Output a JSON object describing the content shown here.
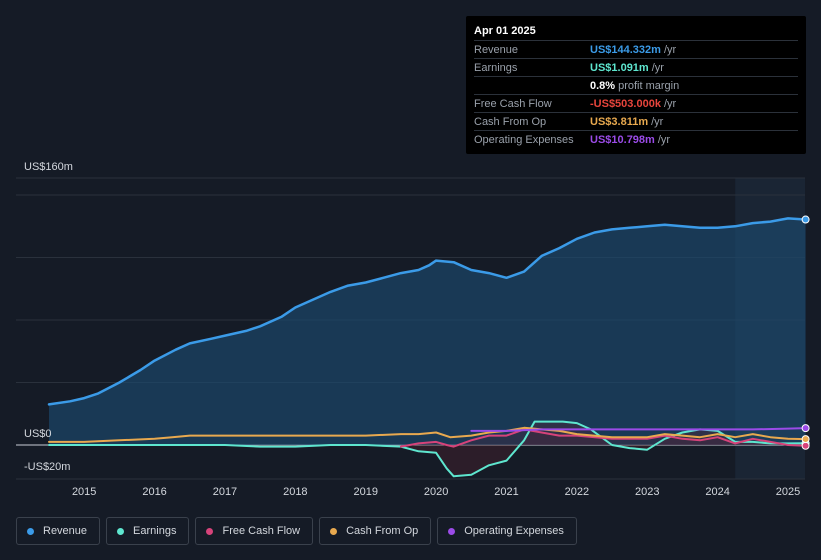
{
  "tooltip": {
    "date": "Apr 01 2025",
    "rows": [
      {
        "label": "Revenue",
        "value": "US$144.332m",
        "unit": "/yr",
        "color": "#3b9be8"
      },
      {
        "label": "Earnings",
        "value": "US$1.091m",
        "unit": "/yr",
        "color": "#5ee6cf"
      },
      {
        "label": "",
        "value": "0.8%",
        "unit": "profit margin",
        "color": "#ffffff"
      },
      {
        "label": "Free Cash Flow",
        "value": "-US$503.000k",
        "unit": "/yr",
        "color": "#e8453c"
      },
      {
        "label": "Cash From Op",
        "value": "US$3.811m",
        "unit": "/yr",
        "color": "#e8a94f"
      },
      {
        "label": "Operating Expenses",
        "value": "US$10.798m",
        "unit": "/yr",
        "color": "#9b4be8"
      }
    ]
  },
  "chart_data": {
    "type": "area",
    "title": "",
    "xlabel": "",
    "ylabel": "",
    "ylim": [
      -20,
      160
    ],
    "y_tick_labels": [
      "US$160m",
      "US$0",
      "-US$20m"
    ],
    "x_tick_labels": [
      "2015",
      "2016",
      "2017",
      "2018",
      "2019",
      "2020",
      "2021",
      "2022",
      "2023",
      "2024",
      "2025"
    ],
    "x_tick_years": [
      2015,
      2016,
      2017,
      2018,
      2019,
      2020,
      2021,
      2022,
      2023,
      2024,
      2025
    ],
    "x_range": [
      2014.5,
      2025.3
    ],
    "highlight_from": 2024.25,
    "series": [
      {
        "name": "Revenue",
        "color": "#3b9be8",
        "fill": true,
        "x": [
          2014.5,
          2014.8,
          2015.0,
          2015.2,
          2015.5,
          2015.8,
          2016.0,
          2016.3,
          2016.5,
          2016.8,
          2017.0,
          2017.3,
          2017.5,
          2017.8,
          2018.0,
          2018.3,
          2018.5,
          2018.75,
          2019.0,
          2019.25,
          2019.5,
          2019.75,
          2019.9,
          2020.0,
          2020.25,
          2020.5,
          2020.75,
          2021.0,
          2021.25,
          2021.5,
          2021.75,
          2022.0,
          2022.25,
          2022.5,
          2022.75,
          2023.0,
          2023.25,
          2023.5,
          2023.75,
          2024.0,
          2024.25,
          2024.5,
          2024.75,
          2025.0,
          2025.25
        ],
        "values": [
          26,
          28,
          30,
          33,
          40,
          48,
          54,
          61,
          65,
          68,
          70,
          73,
          76,
          82,
          88,
          94,
          98,
          102,
          104,
          107,
          110,
          112,
          115,
          118,
          117,
          112,
          110,
          107,
          111,
          121,
          126,
          132,
          136,
          138,
          139,
          140,
          141,
          140,
          139,
          139,
          140,
          142,
          143,
          145,
          144.3
        ]
      },
      {
        "name": "Earnings",
        "color": "#5ee6cf",
        "fill": false,
        "x": [
          2014.5,
          2015.0,
          2015.5,
          2016.0,
          2016.5,
          2017.0,
          2017.5,
          2018.0,
          2018.5,
          2019.0,
          2019.5,
          2019.75,
          2020.0,
          2020.15,
          2020.25,
          2020.5,
          2020.75,
          2021.0,
          2021.25,
          2021.4,
          2021.6,
          2021.8,
          2022.0,
          2022.2,
          2022.5,
          2022.75,
          2023.0,
          2023.25,
          2023.5,
          2023.75,
          2024.0,
          2024.25,
          2024.5,
          2024.75,
          2025.0,
          2025.25
        ],
        "values": [
          0,
          0,
          0,
          0,
          0,
          0,
          -1,
          -1,
          0,
          0,
          -1,
          -4,
          -5,
          -15,
          -20,
          -19,
          -13,
          -10,
          3,
          15,
          15,
          15,
          14,
          10,
          0,
          -2,
          -3,
          4,
          8,
          10,
          9,
          2,
          2,
          1,
          1,
          1.1
        ]
      },
      {
        "name": "Free Cash Flow",
        "color": "#d6437a",
        "fill": false,
        "x": [
          2019.5,
          2019.75,
          2020.0,
          2020.15,
          2020.25,
          2020.5,
          2020.75,
          2021.0,
          2021.25,
          2021.5,
          2021.75,
          2022.0,
          2022.5,
          2023.0,
          2023.25,
          2023.5,
          2023.75,
          2024.0,
          2024.25,
          2024.5,
          2024.75,
          2025.0,
          2025.25
        ],
        "values": [
          -1,
          1,
          2,
          0,
          -1,
          3,
          6,
          6,
          10,
          8,
          6,
          6,
          4,
          4,
          6,
          4,
          3,
          5,
          1,
          4,
          2,
          0,
          -0.5
        ]
      },
      {
        "name": "Cash From Op",
        "color": "#e8a94f",
        "fill": false,
        "x": [
          2014.5,
          2015.0,
          2015.5,
          2016.0,
          2016.25,
          2016.5,
          2017.0,
          2017.5,
          2018.0,
          2018.5,
          2019.0,
          2019.5,
          2019.75,
          2020.0,
          2020.2,
          2020.5,
          2020.75,
          2021.0,
          2021.25,
          2021.5,
          2021.75,
          2022.0,
          2022.5,
          2023.0,
          2023.25,
          2023.5,
          2023.75,
          2024.0,
          2024.25,
          2024.5,
          2024.75,
          2025.0,
          2025.25
        ],
        "values": [
          2,
          2,
          3,
          4,
          5,
          6,
          6,
          6,
          6,
          6,
          6,
          7,
          7,
          8,
          5,
          6,
          8,
          9,
          11,
          10,
          9,
          7,
          5,
          5,
          7,
          6,
          5,
          7,
          5,
          7,
          5,
          4,
          3.8
        ]
      },
      {
        "name": "Operating Expenses",
        "color": "#9b4be8",
        "fill": false,
        "x": [
          2020.5,
          2021.0,
          2021.5,
          2022.0,
          2022.5,
          2023.0,
          2023.5,
          2024.0,
          2024.5,
          2025.0,
          2025.25
        ],
        "values": [
          9,
          9,
          10,
          10,
          10,
          10,
          10,
          10,
          10,
          10.5,
          10.8
        ]
      }
    ]
  },
  "legend": [
    "Revenue",
    "Earnings",
    "Free Cash Flow",
    "Cash From Op",
    "Operating Expenses"
  ]
}
